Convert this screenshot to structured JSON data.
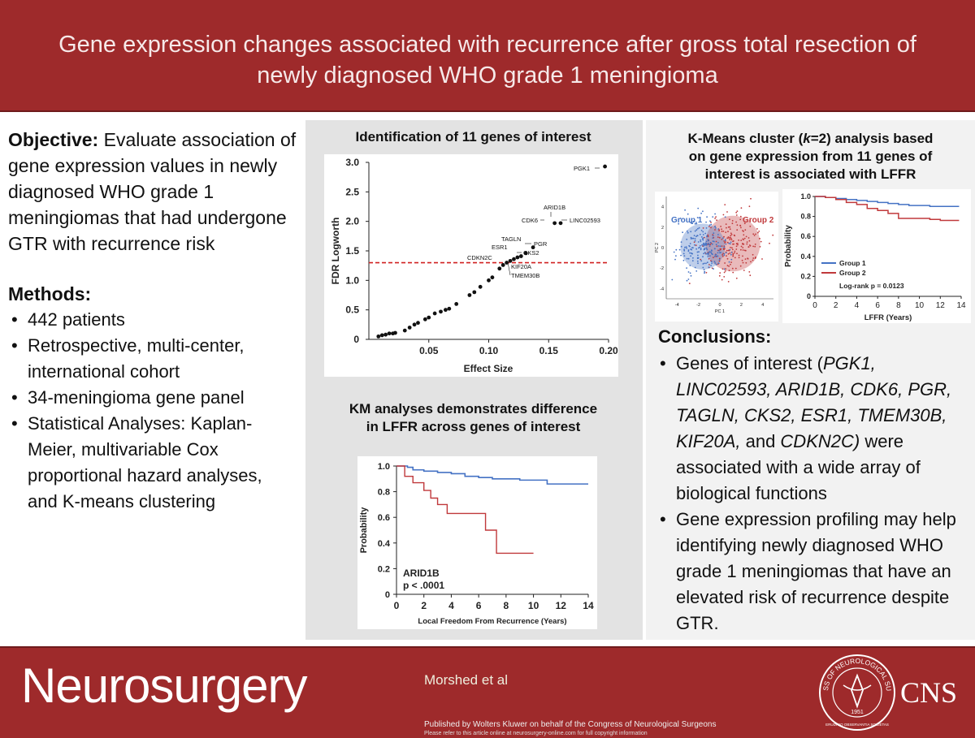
{
  "header": {
    "title_line1": "Gene expression changes associated with recurrence after gross total resection of",
    "title_line2": "newly diagnosed WHO grade 1 meningioma"
  },
  "objective": {
    "label": "Objective:",
    "text": " Evaluate association of gene expression values in newly diagnosed WHO grade 1 meningiomas that had undergone GTR with recurrence risk"
  },
  "methods": {
    "heading": "Methods:",
    "items": [
      "442 patients",
      "Retrospective, multi-center, international cohort",
      "34-meningioma gene panel",
      "Statistical Analyses: Kaplan-Meier, multivariable Cox proportional hazard analyses, and K-means clustering"
    ]
  },
  "panel1": {
    "title": "Identification of 11 genes of interest"
  },
  "panel2": {
    "title_line1": "KM analyses demonstrates difference",
    "title_line2": "in LFFR across genes of interest"
  },
  "panel3": {
    "title_line1_pre": "K-Means cluster (",
    "title_k": "k",
    "title_line1_post": "=2) analysis based",
    "title_line2": "on gene expression from 11 genes of",
    "title_line3": "interest is associated with LFFR"
  },
  "conclusions": {
    "heading": "Conclusions:",
    "item1_pre": "Genes of interest (",
    "item1_genes": "PGK1, LINC02593, ARID1B, CDK6, PGR, TAGLN, CKS2, ESR1, TMEM30B, KIF20A,",
    "item1_and": " and ",
    "item1_last": "CDKN2C)",
    "item1_post": " were associated with a wide array of biological functions",
    "item2": "Gene expression profiling may help identifying newly diagnosed WHO grade 1 meningiomas that have an elevated risk of recurrence despite GTR."
  },
  "footer": {
    "journal": "Neurosurgery",
    "author": "Morshed et al",
    "publisher": "Published by Wolters Kluwer on behalf of the Congress of Neurological Surgeons",
    "copyright": "Please refer to this article online at neurosurgery-online.com for full copyright information",
    "cns": "CNS",
    "seal_text": "CONGRESS OF NEUROLOGICAL SURGEONS",
    "seal_year": "1951",
    "seal_motto": "ERUDITIO OBSERVANTIA SOCIETAS"
  },
  "colors": {
    "brand_red": "#9e2a2b",
    "group1_blue": "#4472c4",
    "group2_red": "#c0393b",
    "threshold": "#d02020"
  },
  "chart_data": [
    {
      "type": "scatter",
      "xlabel": "Effect Size",
      "ylabel": "FDR Logworth",
      "xlim": [
        0,
        0.2
      ],
      "ylim": [
        0,
        3.0
      ],
      "xticks": [
        "0.05",
        "0.10",
        "0.15",
        "0.20"
      ],
      "yticks": [
        "0",
        "0.5",
        "1.0",
        "1.5",
        "2.0",
        "2.5",
        "3.0"
      ],
      "threshold": 1.3,
      "points": [
        [
          0.008,
          0.05
        ],
        [
          0.011,
          0.07
        ],
        [
          0.014,
          0.08
        ],
        [
          0.017,
          0.1
        ],
        [
          0.02,
          0.1
        ],
        [
          0.022,
          0.11
        ],
        [
          0.03,
          0.15
        ],
        [
          0.034,
          0.2
        ],
        [
          0.038,
          0.25
        ],
        [
          0.041,
          0.28
        ],
        [
          0.047,
          0.34
        ],
        [
          0.05,
          0.37
        ],
        [
          0.055,
          0.44
        ],
        [
          0.06,
          0.47
        ],
        [
          0.064,
          0.5
        ],
        [
          0.067,
          0.52
        ],
        [
          0.073,
          0.6
        ],
        [
          0.084,
          0.75
        ],
        [
          0.088,
          0.8
        ],
        [
          0.093,
          0.89
        ],
        [
          0.1,
          1.0
        ],
        [
          0.103,
          1.05
        ],
        [
          0.109,
          1.2
        ],
        [
          0.112,
          1.26
        ],
        [
          0.115,
          1.3
        ],
        [
          0.118,
          1.33
        ],
        [
          0.121,
          1.36
        ],
        [
          0.124,
          1.39
        ],
        [
          0.127,
          1.41
        ],
        [
          0.131,
          1.46
        ],
        [
          0.137,
          1.56
        ],
        [
          0.155,
          1.97
        ],
        [
          0.16,
          1.97
        ],
        [
          0.197,
          2.93
        ]
      ],
      "annotations": [
        "PGK1",
        "ARID1B",
        "CDK6",
        "LINC02593",
        "TAGLN",
        "ESR1",
        "PGR",
        "CKS2",
        "CDKN2C",
        "KIF20A",
        "TMEM30B"
      ]
    },
    {
      "type": "line",
      "xlabel": "Local Freedom From Recurrence (Years)",
      "ylabel": "Probability",
      "xlim": [
        0,
        14
      ],
      "ylim": [
        0,
        1.0
      ],
      "xticks": [
        "0",
        "2",
        "4",
        "6",
        "8",
        "10",
        "12",
        "14"
      ],
      "yticks": [
        "0",
        "0.2",
        "0.4",
        "0.6",
        "0.8",
        "1.0"
      ],
      "annotation_gene": "ARID1B",
      "annotation_p": "p < .0001",
      "series": [
        {
          "x": [
            0,
            0.8,
            1.2,
            2,
            3,
            4,
            5,
            6,
            7,
            8,
            9,
            10,
            11,
            12,
            13,
            14
          ],
          "y": [
            1.0,
            0.99,
            0.97,
            0.96,
            0.95,
            0.94,
            0.92,
            0.91,
            0.9,
            0.9,
            0.89,
            0.89,
            0.86,
            0.86,
            0.86,
            0.86
          ]
        },
        {
          "x": [
            0,
            0.6,
            0.6,
            1.2,
            1.2,
            2,
            2,
            2.5,
            2.5,
            3,
            3,
            3.7,
            3.7,
            6.5,
            6.5,
            7.3,
            7.3,
            10
          ],
          "y": [
            1.0,
            1.0,
            0.92,
            0.92,
            0.87,
            0.87,
            0.81,
            0.81,
            0.75,
            0.75,
            0.7,
            0.7,
            0.63,
            0.63,
            0.5,
            0.5,
            0.32,
            0.32
          ]
        }
      ]
    },
    {
      "type": "scatter",
      "xlabel": "PC 1",
      "ylabel": "PC 2",
      "xlim": [
        -5,
        5
      ],
      "ylim": [
        -5,
        5
      ],
      "xticks": [
        "-4",
        "-2",
        "0",
        "2",
        "4"
      ],
      "yticks": [
        "4",
        "2",
        "0",
        "-2",
        "-4"
      ],
      "series": [
        {
          "name": "Group 1",
          "center": [
            -1.6,
            0.1
          ],
          "spread": [
            1.3,
            1.4
          ],
          "count": 220
        },
        {
          "name": "Group 2",
          "center": [
            1.2,
            0.4
          ],
          "spread": [
            1.6,
            1.7
          ],
          "count": 222
        }
      ]
    },
    {
      "type": "line",
      "xlabel": "LFFR (Years)",
      "ylabel": "Probability",
      "xlim": [
        0,
        14
      ],
      "ylim": [
        0,
        1.0
      ],
      "xticks": [
        "0",
        "2",
        "4",
        "6",
        "8",
        "10",
        "12",
        "14"
      ],
      "yticks": [
        "0",
        "0.2",
        "0.4",
        "0.6",
        "0.8",
        "1.0"
      ],
      "logrank": "Log-rank p = 0.0123",
      "series": [
        {
          "name": "Group 1",
          "x": [
            0,
            1,
            2,
            3,
            4,
            5,
            6,
            7,
            8,
            9,
            10,
            11,
            12,
            13,
            13.8
          ],
          "y": [
            1.0,
            0.99,
            0.98,
            0.97,
            0.96,
            0.95,
            0.94,
            0.93,
            0.92,
            0.91,
            0.91,
            0.9,
            0.9,
            0.9,
            0.9
          ]
        },
        {
          "name": "Group 2",
          "x": [
            0,
            1,
            2,
            3,
            4,
            5,
            6,
            7,
            8,
            9,
            10,
            11,
            12,
            13,
            13.8
          ],
          "y": [
            1.0,
            0.99,
            0.97,
            0.94,
            0.92,
            0.88,
            0.86,
            0.83,
            0.78,
            0.78,
            0.78,
            0.77,
            0.76,
            0.76,
            0.76
          ]
        }
      ]
    }
  ]
}
